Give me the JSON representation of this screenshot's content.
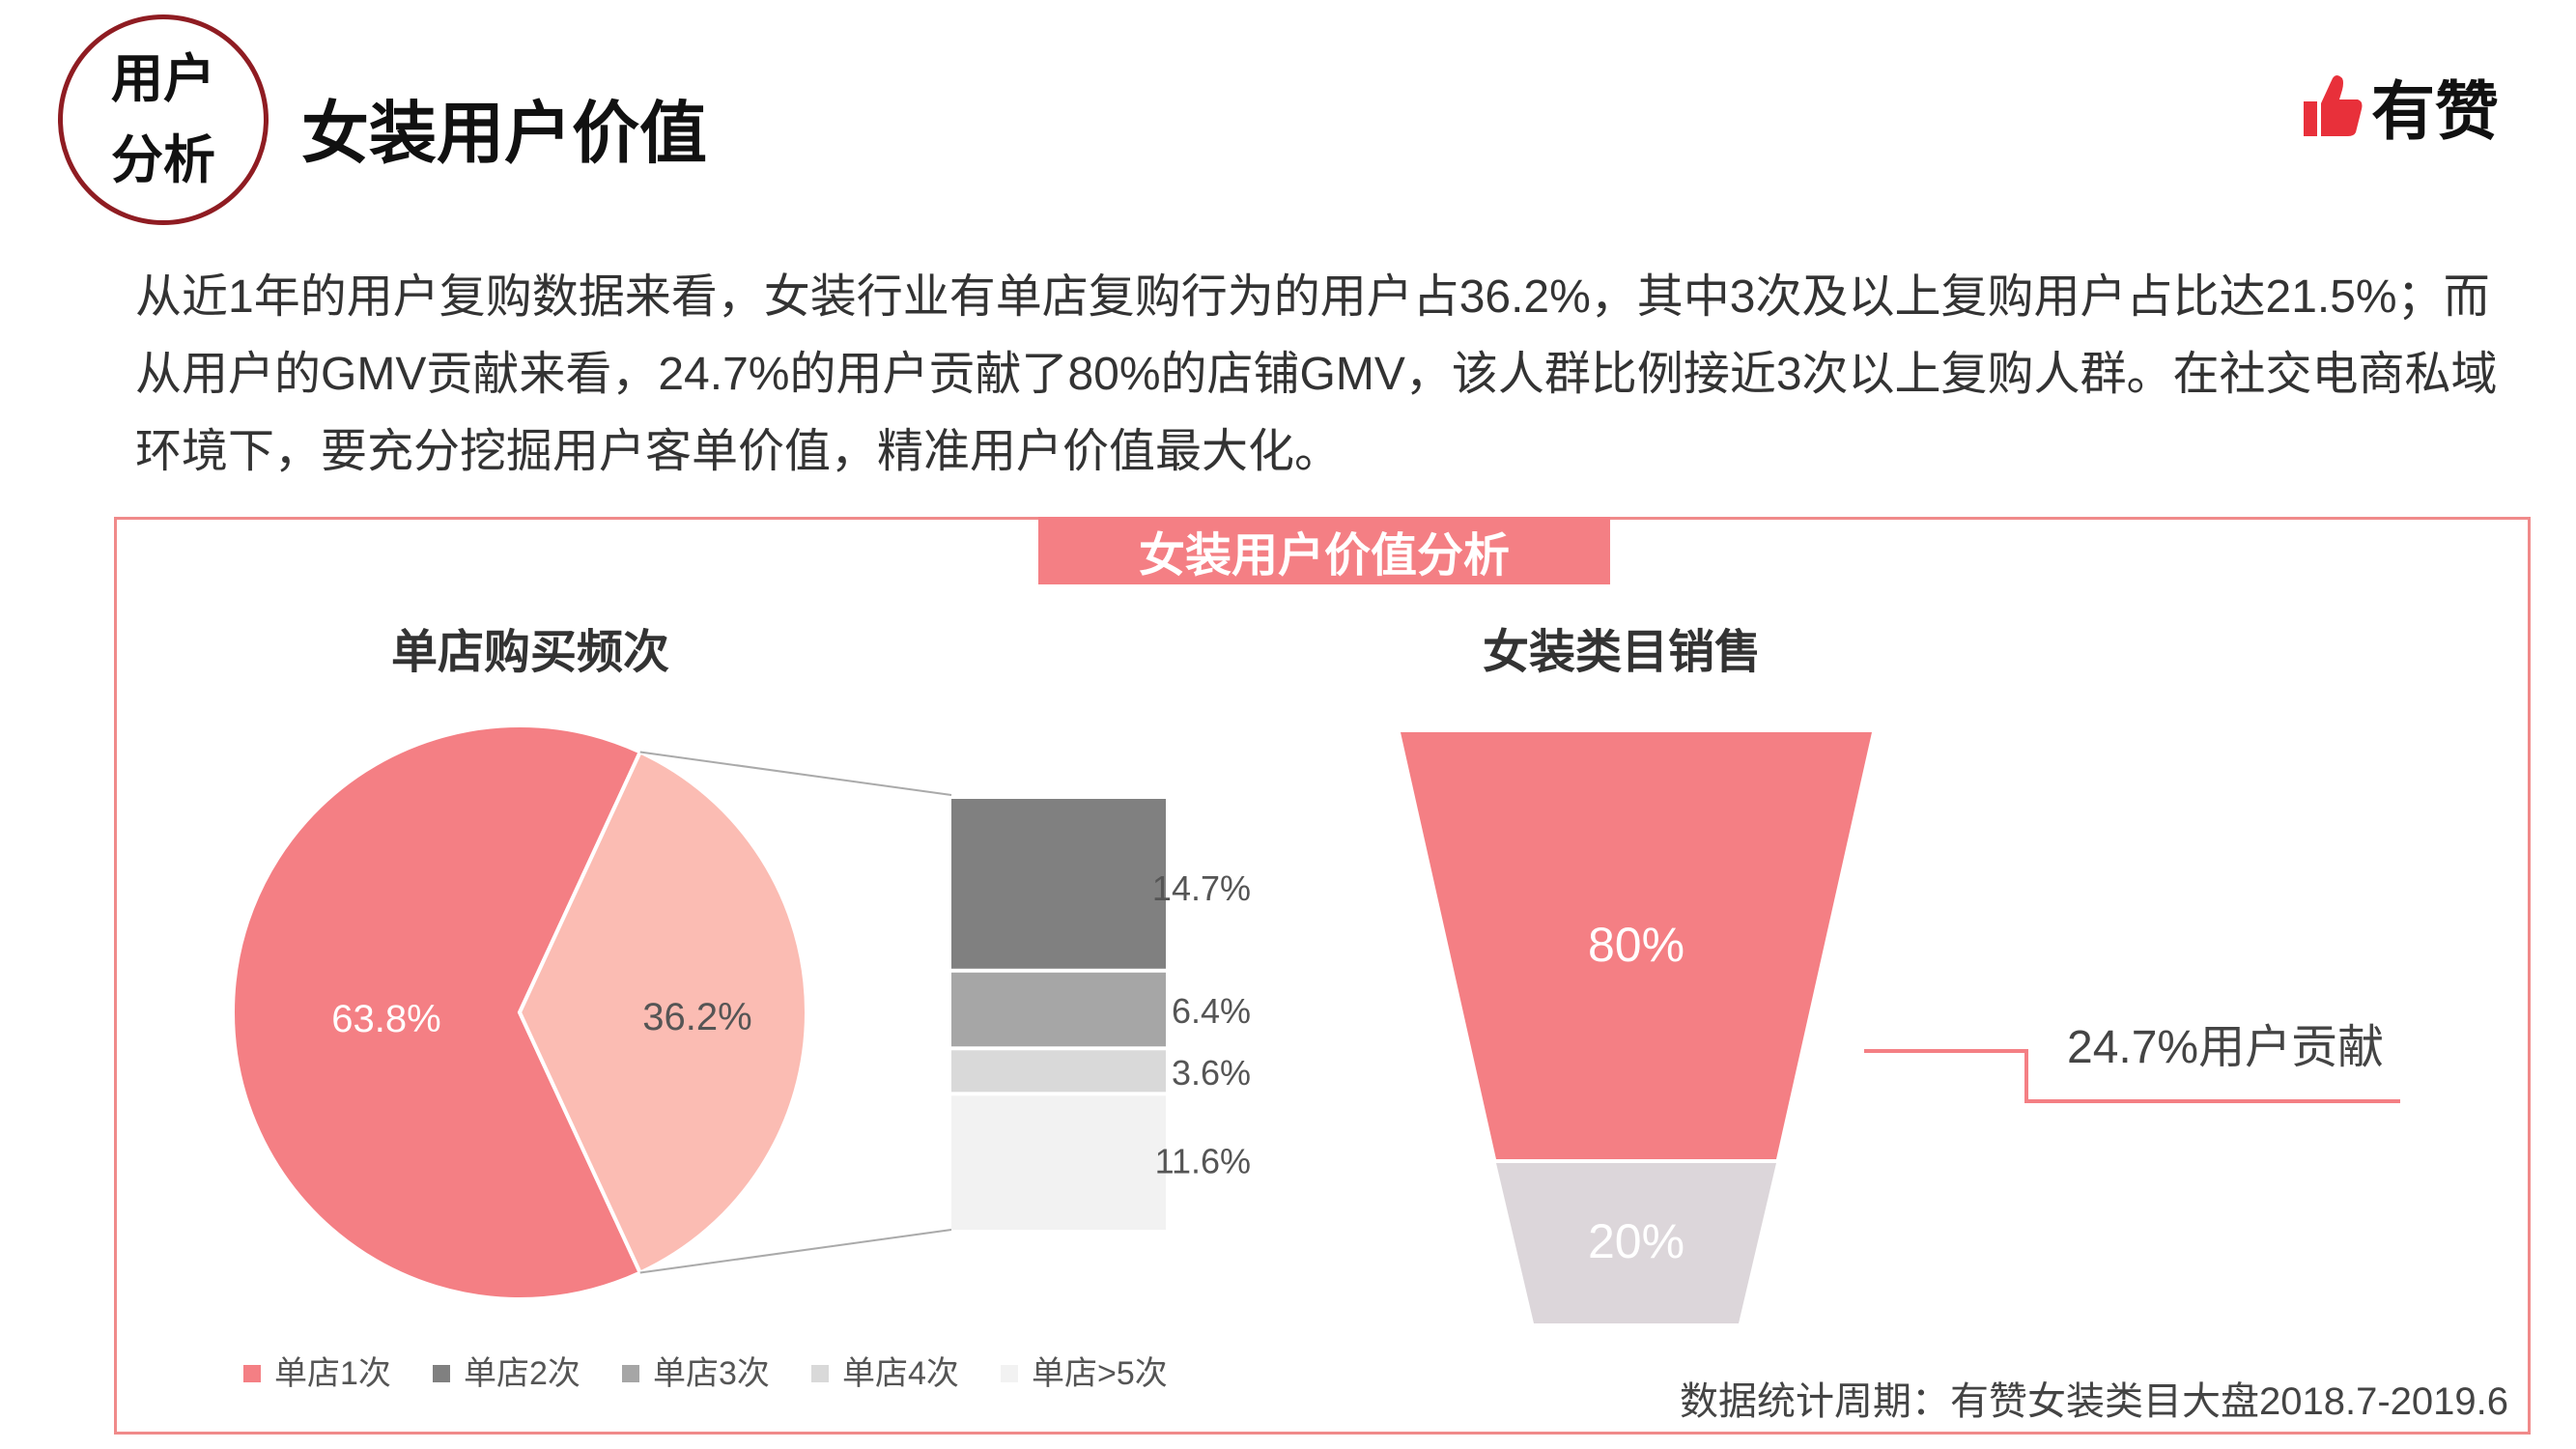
{
  "header": {
    "badge_line1": "用户",
    "badge_line2": "分析",
    "title": "女装用户价值",
    "logo_text": "有赞"
  },
  "description": "从近1年的用户复购数据来看，女装行业有单店复购行为的用户占36.2%，其中3次及以上复购用户占比达21.5%；而从用户的GMV贡献来看，24.7%的用户贡献了80%的店铺GMV，该人群比例接近3次以上复购人群。在社交电商私域环境下，要充分挖掘用户客单价值，精准用户价值最大化。",
  "panel_title": "女装用户价值分析",
  "source": "数据统计周期：有赞女装类目大盘2018.7-2019.6",
  "colors": {
    "accent": "#f47f84",
    "pie_light": "#fbbcb3",
    "funnel_gray": "#dcd6da",
    "badge": "#8f1c22",
    "logo_red": "#e8303a"
  },
  "chart_data": [
    {
      "type": "pie",
      "title": "单店购买频次",
      "slices": [
        {
          "label": "63.8%",
          "value": 63.8
        },
        {
          "label": "36.2%",
          "value": 36.2
        }
      ],
      "breakdown": {
        "type": "stacked_bar",
        "segments": [
          {
            "label": "14.7%",
            "value": 14.7,
            "color": "#808080"
          },
          {
            "label": "6.4%",
            "value": 6.4,
            "color": "#a6a6a6"
          },
          {
            "label": "3.6%",
            "value": 3.6,
            "color": "#d9d9d9"
          },
          {
            "label": "11.6%",
            "value": 11.6,
            "color": "#f2f2f2"
          }
        ]
      },
      "legend": [
        {
          "name": "单店1次",
          "color": "#f47f84"
        },
        {
          "name": "单店2次",
          "color": "#808080"
        },
        {
          "name": "单店3次",
          "color": "#a6a6a6"
        },
        {
          "name": "单店4次",
          "color": "#d9d9d9"
        },
        {
          "name": "单店>5次",
          "color": "#f2f2f2"
        }
      ],
      "legend_position": "bottom"
    },
    {
      "type": "funnel",
      "title": "女装类目销售",
      "stages": [
        {
          "label": "80%",
          "value": 80
        },
        {
          "label": "20%",
          "value": 20
        }
      ],
      "annotation": "24.7%用户贡献"
    }
  ]
}
